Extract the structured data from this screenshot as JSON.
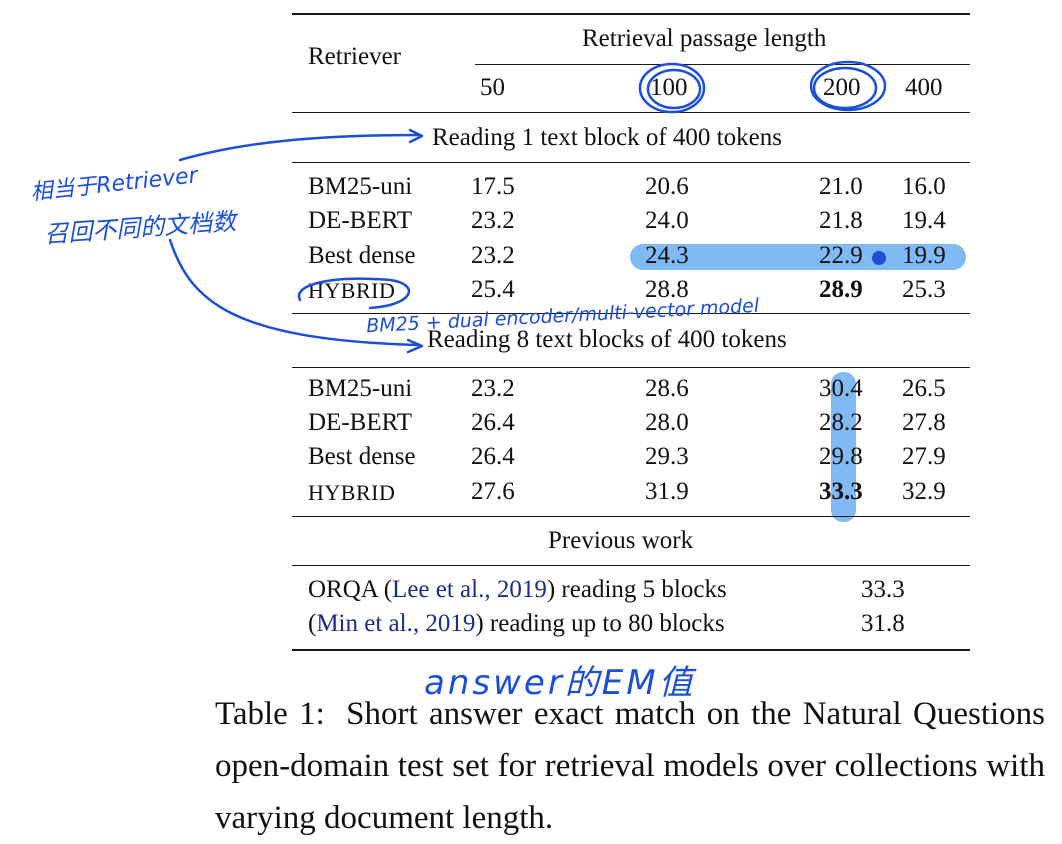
{
  "table": {
    "retriever_header": "Retriever",
    "length_header": "Retrieval passage length",
    "lengths": [
      "50",
      "100",
      "200",
      "400"
    ],
    "section_1": {
      "title": "Reading 1 text block of 400 tokens",
      "rows": [
        {
          "name": "BM25-uni",
          "values": [
            "17.5",
            "20.6",
            "21.0",
            "16.0"
          ]
        },
        {
          "name": "DE-BERT",
          "values": [
            "23.2",
            "24.0",
            "21.8",
            "19.4"
          ]
        },
        {
          "name": "Best dense",
          "values": [
            "23.2",
            "24.3",
            "22.9",
            "19.9"
          ]
        },
        {
          "name": "HYBRID",
          "values": [
            "25.4",
            "28.8",
            "28.9",
            "25.3"
          ]
        }
      ]
    },
    "section_2": {
      "title": "Reading 8 text blocks of 400 tokens",
      "rows": [
        {
          "name": "BM25-uni",
          "values": [
            "23.2",
            "28.6",
            "30.4",
            "26.5"
          ]
        },
        {
          "name": "DE-BERT",
          "values": [
            "26.4",
            "28.0",
            "28.2",
            "27.8"
          ]
        },
        {
          "name": "Best dense",
          "values": [
            "26.4",
            "29.3",
            "29.8",
            "27.9"
          ]
        },
        {
          "name": "HYBRID",
          "values": [
            "27.6",
            "31.9",
            "33.3",
            "32.9"
          ]
        }
      ]
    },
    "section_3": {
      "title": "Previous work",
      "rows": [
        {
          "prefix": "ORQA (",
          "cite": "Lee et al., 2019",
          "suffix": ") reading 5 blocks",
          "value": "33.3"
        },
        {
          "prefix": "(",
          "cite": "Min et al., 2019",
          "suffix": ") reading up to 80 blocks",
          "value": "31.8"
        }
      ]
    }
  },
  "caption": {
    "label": "Table 1:",
    "text": "Short answer exact match on the Natural Questions open-domain test set for retrieval models over collections with varying document length."
  },
  "annotations": {
    "left_note_line1": "相当于Retriever",
    "left_note_line2": "召回不同的文档数",
    "hybrid_note": "BM25 + dual encoder/multi-vector model",
    "em_note": "answer的EM值",
    "ink_color": "#1a4fd6",
    "highlight_color": "#6aaef2"
  }
}
